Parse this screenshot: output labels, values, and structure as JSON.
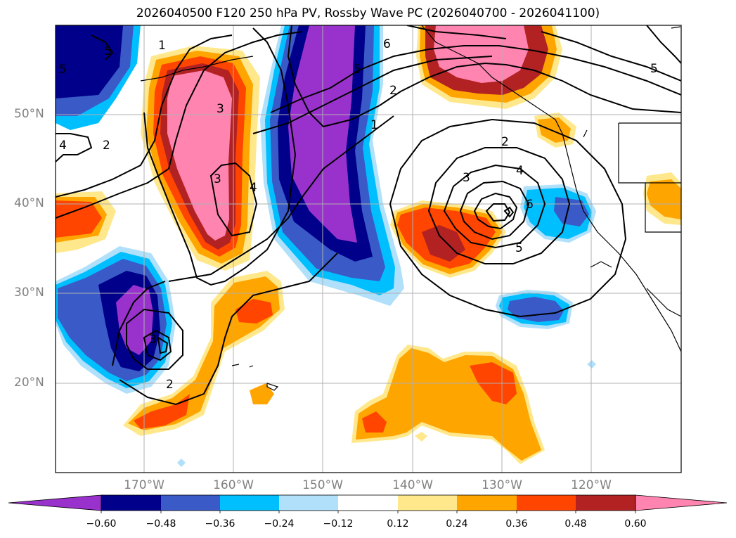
{
  "title": "2026040500 F120 250 hPa PV, Rossby Wave PC (2026040700 - 2026041100)",
  "lat_labels": [
    "50°N",
    "40°N",
    "30°N",
    "20°N"
  ],
  "lon_labels": [
    "170°W",
    "160°W",
    "150°W",
    "140°W",
    "130°W",
    "120°W"
  ],
  "contour_labels": [
    "1",
    "2",
    "3",
    "4",
    "5",
    "6",
    "2",
    "3",
    "4",
    "5",
    "6",
    "1",
    "2",
    "3",
    "4",
    "2",
    "3",
    "5",
    "5",
    "5"
  ],
  "colorbar": {
    "ticks": [
      "−0.60",
      "−0.48",
      "−0.36",
      "−0.24",
      "−0.12",
      "0.12",
      "0.24",
      "0.36",
      "0.48",
      "0.60"
    ],
    "colors": [
      "#9932cc",
      "#00008b",
      "#3a5bc7",
      "#00bfff",
      "#b0e0fa",
      "#ffffff",
      "#ffe88c",
      "#ffa500",
      "#ff4500",
      "#b22222",
      "#ff85b0"
    ]
  }
}
